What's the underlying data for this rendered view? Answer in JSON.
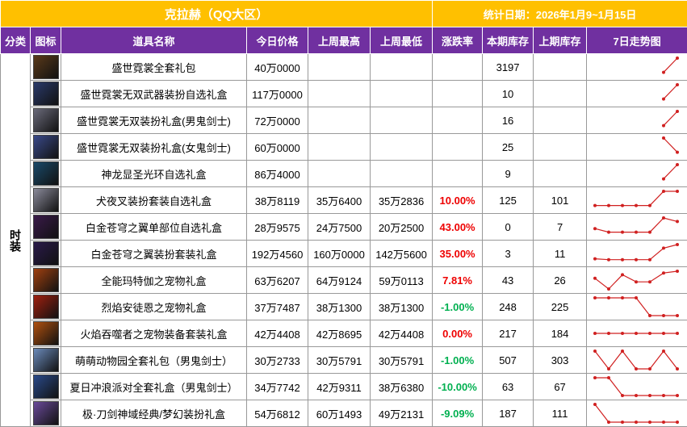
{
  "title": "克拉赫（QQ大区）",
  "date": "统计日期：2026年1月9~1月15日",
  "columns": [
    "分类",
    "图标",
    "道具名称",
    "今日价格",
    "上周最高",
    "上周最低",
    "涨跌率",
    "本期库存",
    "上期库存",
    "7日走势图"
  ],
  "category": "时装",
  "rows": [
    {
      "name": "盛世霓裳全套礼包",
      "price": "40万0000",
      "high": null,
      "low": null,
      "change": null,
      "stock": 3197,
      "prev_stock": null,
      "trend": [
        null,
        null,
        null,
        null,
        null,
        2,
        10
      ]
    },
    {
      "name": "盛世霓裳无双武器装扮自选礼盒",
      "price": "117万0000",
      "high": null,
      "low": null,
      "change": null,
      "stock": 10,
      "prev_stock": null,
      "trend": [
        null,
        null,
        null,
        null,
        null,
        2,
        10
      ]
    },
    {
      "name": "盛世霓裳无双装扮礼盒(男鬼剑士)",
      "price": "72万0000",
      "high": null,
      "low": null,
      "change": null,
      "stock": 16,
      "prev_stock": null,
      "trend": [
        null,
        null,
        null,
        null,
        null,
        2,
        10
      ]
    },
    {
      "name": "盛世霓裳无双装扮礼盒(女鬼剑士)",
      "price": "60万0000",
      "high": null,
      "low": null,
      "change": null,
      "stock": 25,
      "prev_stock": null,
      "trend": [
        null,
        null,
        null,
        null,
        null,
        10,
        2
      ]
    },
    {
      "name": "神龙显圣光环自选礼盒",
      "price": "86万4000",
      "high": null,
      "low": null,
      "change": null,
      "stock": 9,
      "prev_stock": null,
      "trend": [
        null,
        null,
        null,
        null,
        null,
        2,
        10
      ]
    },
    {
      "name": "犬夜叉装扮套装自选礼盒",
      "price": "38万8119",
      "high": "35万6400",
      "low": "35万2836",
      "change": "10.00%",
      "stock": 125,
      "prev_stock": 101,
      "trend": [
        2,
        2,
        2,
        2,
        2,
        10,
        10
      ]
    },
    {
      "name": "白金苍穹之翼单部位自选礼盒",
      "price": "28万9575",
      "high": "24万7500",
      "low": "20万2500",
      "change": "43.00%",
      "stock": 0,
      "prev_stock": 7,
      "trend": [
        4,
        2,
        2,
        2,
        2,
        10,
        8
      ]
    },
    {
      "name": "白金苍穹之翼装扮套装礼盒",
      "price": "192万4560",
      "high": "160万0000",
      "low": "142万5600",
      "change": "35.00%",
      "stock": 3,
      "prev_stock": 11,
      "trend": [
        2,
        1.5,
        1.5,
        1.5,
        1.5,
        8,
        10
      ]
    },
    {
      "name": "全能玛特伽之宠物礼盒",
      "price": "63万6207",
      "high": "64万9124",
      "low": "59万0113",
      "change": "7.81%",
      "stock": 43,
      "prev_stock": 26,
      "trend": [
        6,
        0,
        8,
        4,
        4,
        9,
        10
      ]
    },
    {
      "name": "烈焰安徒恩之宠物礼盒",
      "price": "37万7487",
      "high": "38万1300",
      "low": "38万1300",
      "change": "-1.00%",
      "stock": 248,
      "prev_stock": 225,
      "trend": [
        10,
        10,
        10,
        10,
        0,
        0,
        0
      ]
    },
    {
      "name": "火焰吞噬者之宠物装备套装礼盒",
      "price": "42万4408",
      "high": "42万8695",
      "low": "42万4408",
      "change": "0.00%",
      "stock": 217,
      "prev_stock": 184,
      "trend": [
        5,
        5,
        5,
        5,
        5,
        5,
        5
      ]
    },
    {
      "name": "萌萌动物园全套礼包（男鬼剑士）",
      "price": "30万2733",
      "high": "30万5791",
      "low": "30万5791",
      "change": "-1.00%",
      "stock": 507,
      "prev_stock": 303,
      "trend": [
        10,
        0,
        10,
        0,
        0,
        10,
        0
      ]
    },
    {
      "name": "夏日冲浪派对全套礼盒（男鬼剑士）",
      "price": "34万7742",
      "high": "42万9311",
      "low": "38万6380",
      "change": "-10.00%",
      "stock": 63,
      "prev_stock": 67,
      "trend": [
        10,
        10,
        0,
        0,
        0,
        0,
        0
      ]
    },
    {
      "name": "极·刀剑神域经典/梦幻装扮礼盒",
      "price": "54万6812",
      "high": "60万1493",
      "low": "49万2131",
      "change": "-9.09%",
      "stock": 187,
      "prev_stock": 111,
      "trend": [
        10,
        0,
        0,
        0,
        0,
        0,
        0
      ]
    }
  ]
}
